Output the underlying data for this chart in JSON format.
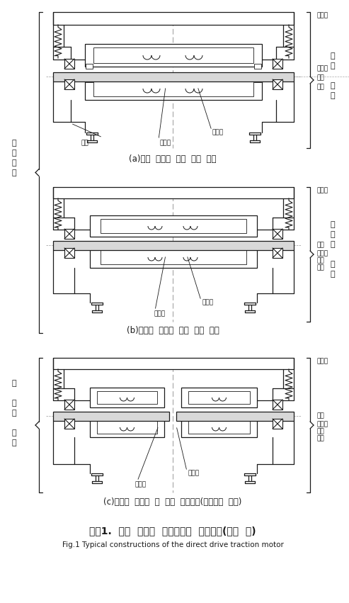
{
  "bg_color": "#ffffff",
  "line_color": "#1a1a1a",
  "gray_line": "#888888",
  "light_fill": "#f0f0f0",
  "title_korean": "그림1.  차륙  일체형  주전동기의  기본구성(대표  예)",
  "title_english": "Fig.1 Typical constructions of the direct drive traction motor",
  "caption_a": "(a)이너  로터형  양륙  구동  방식",
  "caption_b": "(b)아우터  로터형  양륙  구동  방식",
  "caption_c": "(c)아우터  로터형  각  바퀴  구동방식(독립차륙  방식)",
  "label_daechatuel": "대차틀",
  "label_chachuk": "차축",
  "label_hoejeonja": "회전자",
  "label_gojeongja": "고정자",
  "label_bearing": "베어링",
  "label_charyun": "차륙",
  "label_rail": "레일",
  "label_inner_rotor": "이\n너\n\n로\n터",
  "label_outer_rotor": "아\n우\n터\n\n로\n터",
  "label_yangryun": "양\n륙\n구\n동",
  "label_gak_bakwi": "각\n\n바\n퀴\n\n구\n동"
}
